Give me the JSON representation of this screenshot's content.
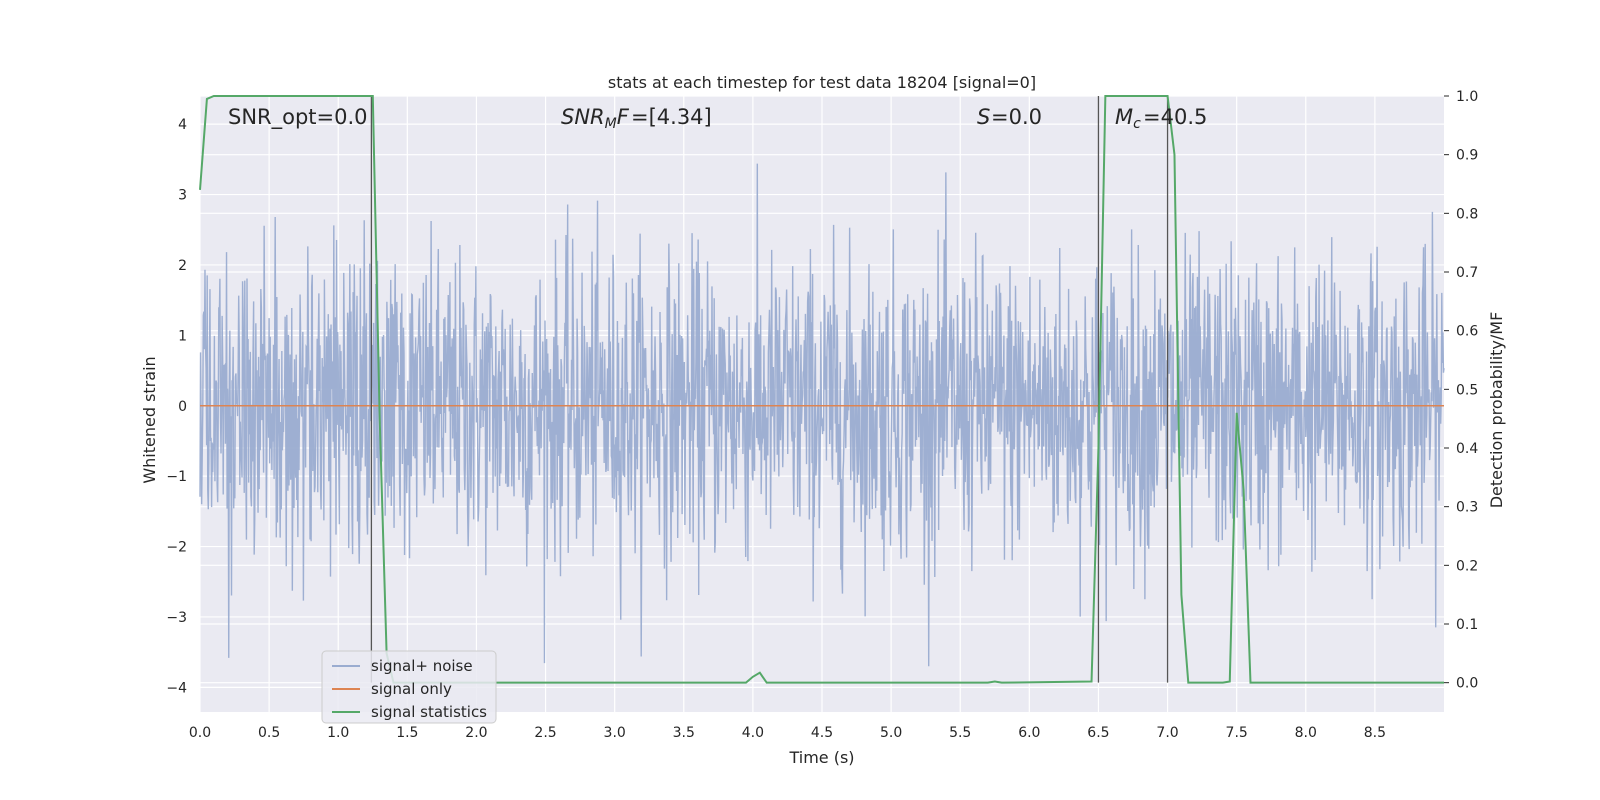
{
  "chart_data": {
    "type": "line",
    "title": "stats at each timestep for test data 18204 [signal=0]",
    "xlabel": "Time (s)",
    "ylabel_left": "Whitened strain",
    "ylabel_right": "Detection probability/MF",
    "xlim": [
      0.0,
      9.0
    ],
    "ylim_left": [
      -4.35,
      4.4
    ],
    "ylim_right": [
      -0.05,
      1.0
    ],
    "x_ticks": [
      "0.0",
      "0.5",
      "1.0",
      "1.5",
      "2.0",
      "2.5",
      "3.0",
      "3.5",
      "4.0",
      "4.5",
      "5.0",
      "5.5",
      "6.0",
      "6.5",
      "7.0",
      "7.5",
      "8.0",
      "8.5"
    ],
    "y_ticks_left": [
      "4",
      "3",
      "2",
      "1",
      "0",
      "−1",
      "−2",
      "−3",
      "−4"
    ],
    "y_ticks_right": [
      "1.0",
      "0.9",
      "0.8",
      "0.7",
      "0.6",
      "0.5",
      "0.4",
      "0.3",
      "0.2",
      "0.1",
      "0.0"
    ],
    "grid": true,
    "legend_position": "lower-left",
    "annotations": {
      "snr_opt": "SNR_opt=0.0",
      "snr_mf": "=[4.34]",
      "s_value": "=0.0",
      "mc_value": "=40.5"
    },
    "series": [
      {
        "name": "signal+ noise",
        "axis": "left",
        "color": "#9aacd0",
        "description": "whitened noise, roughly ±1.6 dense band with peaks to about ±3.7",
        "sample_rate_hz": 2048,
        "envelope": [
          1.6,
          -1.6
        ],
        "max_peak": 3.75,
        "min_peak": -3.7
      },
      {
        "name": "signal only",
        "axis": "left",
        "color": "#dd8452",
        "x": [
          0.0,
          9.0
        ],
        "y": [
          0.0,
          0.0
        ]
      },
      {
        "name": "signal statistics",
        "axis": "right",
        "color": "#55a868",
        "x": [
          0.0,
          0.05,
          0.1,
          0.15,
          1.2,
          1.25,
          1.3,
          1.35,
          1.4,
          1.45,
          1.5,
          3.95,
          4.0,
          4.05,
          4.1,
          4.15,
          5.7,
          5.75,
          5.8,
          6.45,
          6.5,
          6.55,
          6.6,
          6.65,
          7.0,
          7.05,
          7.1,
          7.15,
          7.4,
          7.45,
          7.5,
          7.55,
          7.6,
          7.65,
          9.0
        ],
        "y": [
          0.84,
          0.995,
          1.0,
          1.0,
          1.0,
          1.0,
          0.45,
          0.05,
          0.0,
          0.0,
          0.0,
          0.0,
          0.01,
          0.017,
          0.0,
          0.0,
          0.0,
          0.002,
          0.0,
          0.002,
          0.4,
          1.0,
          1.0,
          1.0,
          1.0,
          0.9,
          0.15,
          0.0,
          0.0,
          0.002,
          0.46,
          0.33,
          0.0,
          0.0,
          0.0
        ]
      }
    ],
    "vertical_markers": {
      "color": "#555555",
      "x": [
        1.24,
        6.5,
        7.0
      ]
    }
  },
  "legend": {
    "items": [
      {
        "label": "signal+ noise",
        "color": "#9aacd0"
      },
      {
        "label": "signal only",
        "color": "#dd8452"
      },
      {
        "label": "signal statistics",
        "color": "#55a868"
      }
    ]
  },
  "colors": {
    "plot_background": "#eaeaf2",
    "grid": "#ffffff",
    "text": "#262626"
  }
}
